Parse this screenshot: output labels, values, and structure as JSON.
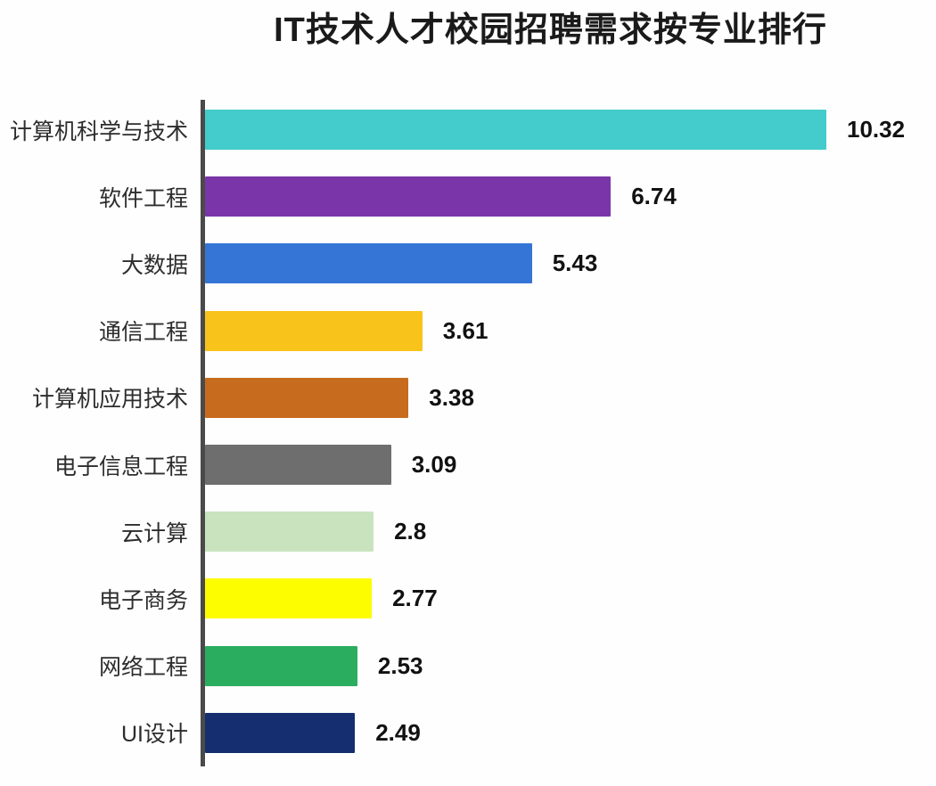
{
  "title": "IT技术人才校园招聘需求按专业排行",
  "chart_data": {
    "type": "bar",
    "orientation": "horizontal",
    "title": "IT技术人才校园招聘需求按专业排行",
    "xlabel": "",
    "ylabel": "",
    "xlim": [
      0,
      10.32
    ],
    "grid": false,
    "legend": null,
    "value_labels_shown": true,
    "categories": [
      "计算机科学与技术",
      "软件工程",
      "大数据",
      "通信工程",
      "计算机应用技术",
      "电子信息工程",
      "云计算",
      "电子商务",
      "网络工程",
      "UI设计"
    ],
    "values": [
      10.32,
      6.74,
      5.43,
      3.61,
      3.38,
      3.09,
      2.8,
      2.77,
      2.53,
      2.49
    ],
    "value_labels": [
      "10.32",
      "6.74",
      "5.43",
      "3.61",
      "3.38",
      "3.09",
      "2.8",
      "2.77",
      "2.53",
      "2.49"
    ],
    "bar_colors": [
      "#44cbcb",
      "#7a36a8",
      "#3575d6",
      "#f8c41b",
      "#c76b1e",
      "#6e6e6e",
      "#c9e3bf",
      "#fdfd00",
      "#2aad5e",
      "#142e70"
    ],
    "colors": {
      "axis_line": "#4a4a4a",
      "title_text": "#1a1a1a",
      "category_text": "#2d2d2d",
      "value_text": "#111111",
      "background": "#fefefe"
    }
  }
}
